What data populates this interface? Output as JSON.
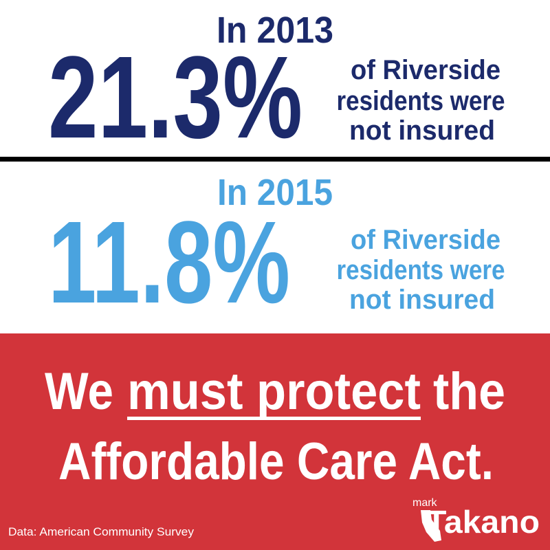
{
  "stats": [
    {
      "year_label": "In 2013",
      "percent": "21.3%",
      "description": [
        "of Riverside",
        "residents were",
        "not insured"
      ]
    },
    {
      "year_label": "In 2015",
      "percent": "11.8%",
      "description": [
        "of Riverside",
        "residents were",
        "not insured"
      ]
    }
  ],
  "banner": {
    "line1": [
      "We",
      "must protect",
      "the"
    ],
    "line2": "Affordable Care Act."
  },
  "footer": {
    "source": "Data: American Community Survey",
    "logo": {
      "prefix": "mark",
      "name": "Takano"
    }
  }
}
